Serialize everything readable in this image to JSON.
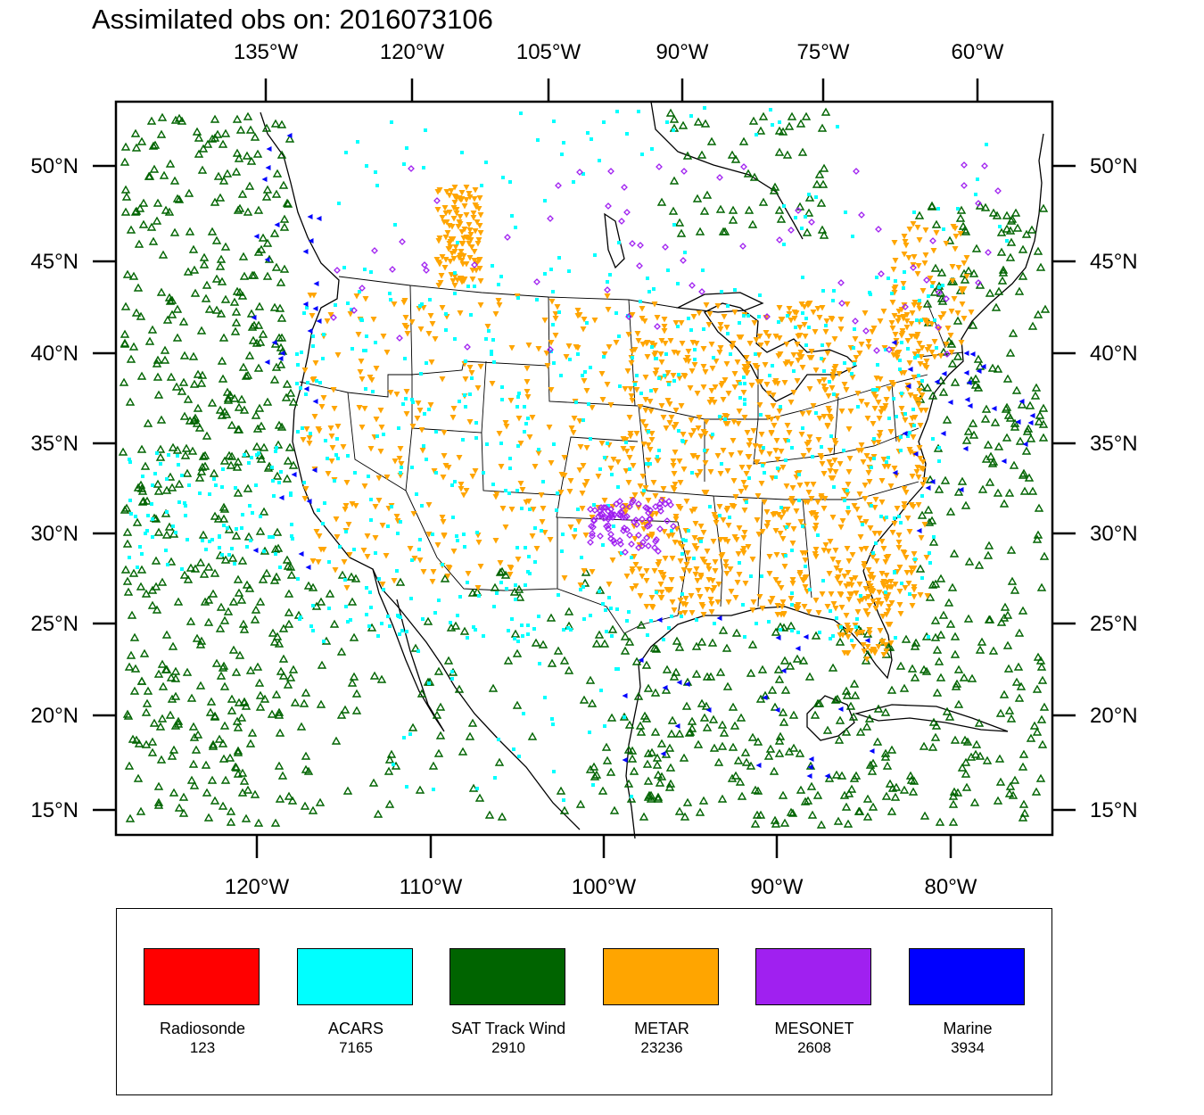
{
  "title": "Assimilated obs on: 2016073106",
  "top_axis_labels": [
    "135°W",
    "120°W",
    "105°W",
    "90°W",
    "75°W",
    "60°W"
  ],
  "bottom_axis_labels": [
    "120°W",
    "110°W",
    "100°W",
    "90°W",
    "80°W"
  ],
  "lat_labels": [
    "50°N",
    "45°N",
    "40°N",
    "35°N",
    "30°N",
    "25°N",
    "20°N",
    "15°N"
  ],
  "colors": {
    "radiosonde": "#ff0000",
    "acars": "#00ffff",
    "sat_track_wind": "#006400",
    "metar": "#ffa500",
    "mesonet": "#a020f0",
    "marine": "#0000ff"
  },
  "legend": [
    {
      "name": "Radiosonde",
      "count": "123",
      "color": "#ff0000"
    },
    {
      "name": "ACARS",
      "count": "7165",
      "color": "#00ffff"
    },
    {
      "name": "SAT Track Wind",
      "count": "2910",
      "color": "#006400"
    },
    {
      "name": "METAR",
      "count": "23236",
      "color": "#ffa500"
    },
    {
      "name": "MESONET",
      "count": "2608",
      "color": "#a020f0"
    },
    {
      "name": "Marine",
      "count": "3934",
      "color": "#0000ff"
    }
  ]
}
